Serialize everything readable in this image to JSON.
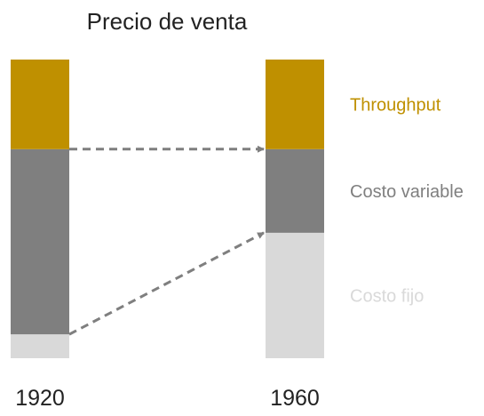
{
  "chart_data": {
    "type": "bar",
    "stacked": true,
    "title": "Precio de venta",
    "categories": [
      "1920",
      "1960"
    ],
    "series": [
      {
        "name": "Costo fijo",
        "color": "#d9d9d9",
        "values": [
          8,
          42
        ]
      },
      {
        "name": "Costo variable",
        "color": "#7f7f7f",
        "values": [
          62,
          28
        ]
      },
      {
        "name": "Throughput",
        "color": "#bf9000",
        "values": [
          30,
          30
        ]
      }
    ],
    "ylim": [
      0,
      100
    ],
    "grid": false,
    "legend_position": "right",
    "annotations": [
      {
        "type": "dashed-arrow",
        "from_category": "1920",
        "from_level": 70,
        "to_category": "1960",
        "to_level": 70
      },
      {
        "type": "dashed-arrow",
        "from_category": "1920",
        "from_level": 8,
        "to_category": "1960",
        "to_level": 42
      }
    ],
    "arrow_color": "#7f7f7f"
  }
}
